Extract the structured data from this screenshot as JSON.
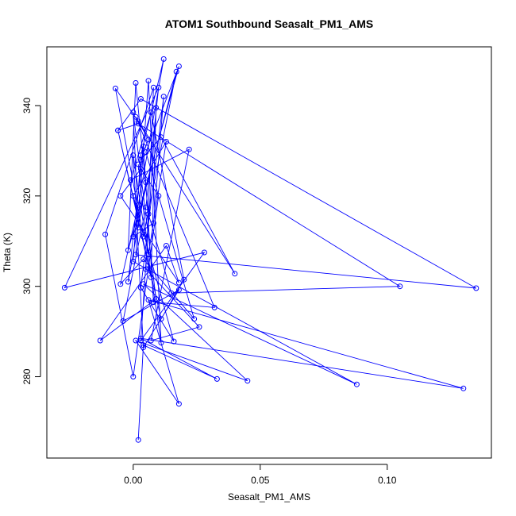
{
  "chart_data": {
    "type": "scatter",
    "title": "ATOM1 Southbound Seasalt_PM1_AMS",
    "xlabel": "Seasalt_PM1_AMS",
    "ylabel": "Theta (K)",
    "xlim": [
      -0.034,
      0.141
    ],
    "ylim": [
      262,
      353
    ],
    "x_ticks": [
      0.0,
      0.05,
      0.1
    ],
    "x_tick_labels": [
      "0.00",
      "0.05",
      "0.10"
    ],
    "y_ticks": [
      280,
      300,
      320,
      340
    ],
    "y_tick_labels": [
      "280",
      "300",
      "320",
      "340"
    ],
    "grid": false,
    "legend": "none",
    "connected": true,
    "marker": "open-circle",
    "colors": {
      "series": "#0000ff",
      "axes": "#000000",
      "background": "#ffffff"
    },
    "series": [
      {
        "points": [
          [
            0.002,
            266.0
          ],
          [
            0.004,
            287.0
          ],
          [
            0.033,
            279.5
          ],
          [
            0.003,
            288.5
          ],
          [
            0.13,
            277.4
          ],
          [
            0.006,
            297.0
          ],
          [
            0.018,
            274.0
          ],
          [
            0.001,
            288.0
          ],
          [
            0.045,
            279.1
          ],
          [
            0.004,
            300.5
          ],
          [
            0.088,
            278.3
          ],
          [
            0.0,
            305.5
          ],
          [
            0.003,
            329.0
          ],
          [
            0.012,
            350.3
          ],
          [
            0.002,
            318.0
          ],
          [
            -0.005,
            300.5
          ],
          [
            0.004,
            306.0
          ],
          [
            0.024,
            292.8
          ],
          [
            0.005,
            329.7
          ],
          [
            0.018,
            348.7
          ],
          [
            -0.002,
            308.0
          ],
          [
            0.001,
            345.0
          ],
          [
            0.006,
            316.0
          ],
          [
            0.015,
            298.5
          ],
          [
            0.105,
            300.0
          ],
          [
            0.002,
            336.0
          ],
          [
            -0.006,
            334.5
          ],
          [
            0.007,
            302.0
          ],
          [
            0.009,
            339.5
          ],
          [
            0.003,
            288.0
          ],
          [
            0.028,
            307.5
          ],
          [
            -0.027,
            299.7
          ],
          [
            0.01,
            344.0
          ],
          [
            0.005,
            317.5
          ],
          [
            -0.004,
            292.3
          ],
          [
            0.018,
            299.2
          ],
          [
            0.004,
            286.5
          ],
          [
            0.0,
            329.0
          ],
          [
            0.011,
            287.5
          ],
          [
            0.006,
            345.5
          ],
          [
            0.001,
            307.0
          ],
          [
            0.135,
            299.6
          ],
          [
            0.003,
            341.5
          ],
          [
            -0.006,
            334.5
          ],
          [
            0.011,
            292.8
          ],
          [
            0.02,
            301.5
          ],
          [
            0.007,
            338.5
          ],
          [
            -0.001,
            323.5
          ],
          [
            0.022,
            330.3
          ],
          [
            0.007,
            288.0
          ],
          [
            0.026,
            291.0
          ],
          [
            0.005,
            303.8
          ],
          [
            0.008,
            344.0
          ],
          [
            -0.011,
            311.5
          ],
          [
            0.0,
            280.0
          ],
          [
            0.01,
            320.0
          ],
          [
            0.003,
            326.0
          ],
          [
            -0.005,
            320.0
          ],
          [
            0.018,
            300.8
          ],
          [
            0.013,
            309.0
          ],
          [
            -0.013,
            288.0
          ],
          [
            0.009,
            297.2
          ],
          [
            0.0,
            338.5
          ],
          [
            0.002,
            313.0
          ],
          [
            0.005,
            323.0
          ],
          [
            -0.002,
            301.0
          ],
          [
            0.004,
            331.0
          ],
          [
            0.008,
            296.5
          ],
          [
            0.032,
            295.3
          ],
          [
            0.001,
            337.5
          ],
          [
            0.04,
            302.8
          ],
          [
            0.011,
            333.0
          ],
          [
            0.003,
            328.0
          ],
          [
            0.006,
            332.5
          ],
          [
            0.002,
            336.5
          ],
          [
            -0.007,
            343.8
          ],
          [
            0.004,
            311.0
          ],
          [
            0.017,
            347.5
          ],
          [
            0.0,
            311.0
          ],
          [
            0.008,
            314.0
          ],
          [
            0.012,
            342.0
          ],
          [
            0.003,
            299.7
          ],
          [
            0.016,
            287.8
          ],
          [
            0.0,
            320.0
          ],
          [
            0.013,
            332.0
          ],
          [
            0.006,
            307.0
          ],
          [
            0.002,
            327.0
          ]
        ]
      }
    ]
  }
}
